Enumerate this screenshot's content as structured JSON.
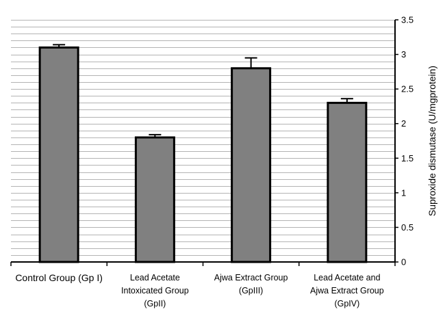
{
  "chart_data": {
    "type": "bar",
    "categories": [
      [
        "Control Group (Gp I)"
      ],
      [
        "Lead Acetate",
        "Intoxicated Group",
        "(GpII)"
      ],
      [
        "Ajwa Extract Group",
        "(GpIII)"
      ],
      [
        "Lead Acetate and",
        "Ajwa Extract Group",
        "(GpIV)"
      ]
    ],
    "values": [
      3.1,
      1.8,
      2.8,
      2.3
    ],
    "errors": [
      0.04,
      0.04,
      0.15,
      0.06
    ],
    "ylabel": "Suproxide dismutase (U/mgprotein)",
    "xlabel": "",
    "title": "",
    "ylim": [
      0,
      3.5
    ],
    "yticks": [
      0,
      0.5,
      1,
      1.5,
      2,
      2.5,
      3,
      3.5
    ],
    "ytick_labels": [
      "0",
      "0.5",
      "1",
      "1.5",
      "2",
      "2.5",
      "3",
      "3.5"
    ],
    "y_axis_side": "right",
    "grid": true,
    "grid_minor_step": 0.1,
    "bar_color": "#808080",
    "bar_edge_color": "#000000"
  }
}
